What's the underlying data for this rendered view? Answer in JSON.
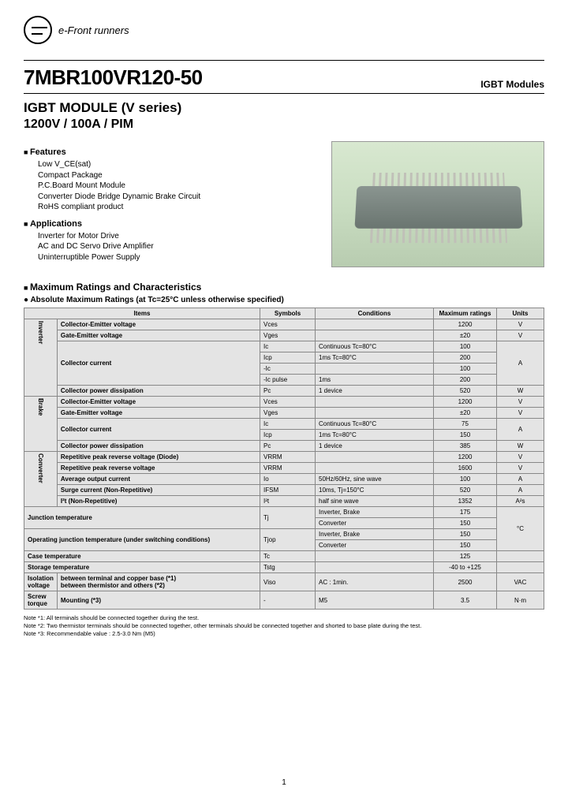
{
  "brand": "e-Front runners",
  "part_number": "7MBR100VR120-50",
  "category": "IGBT Modules",
  "subtitle": "IGBT MODULE (V series)",
  "spec_line": "1200V / 100A / PIM",
  "features": {
    "head": "Features",
    "items": [
      "Low V_CE(sat)",
      "Compact Package",
      "P.C.Board Mount Module",
      "Converter Diode Bridge Dynamic Brake Circuit",
      "RoHS compliant product"
    ]
  },
  "applications": {
    "head": "Applications",
    "items": [
      "Inverter for Motor Drive",
      "AC and DC Servo Drive Amplifier",
      "Uninterruptible Power Supply"
    ]
  },
  "ratings_title": "Maximum Ratings and Characteristics",
  "abs_title": "Absolute Maximum Ratings (at Tc=25°C unless otherwise specified)",
  "table": {
    "headers": [
      "Items",
      "Symbols",
      "Conditions",
      "Maximum ratings",
      "Units"
    ],
    "groups": [
      {
        "name": "Inverter",
        "rows": [
          {
            "item": "Collector-Emitter voltage",
            "sym": "Vces",
            "cond": "",
            "max": "1200",
            "unit": "V",
            "bold": true
          },
          {
            "item": "Gate-Emitter voltage",
            "sym": "Vges",
            "cond": "",
            "max": "±20",
            "unit": "V",
            "bold": true
          },
          {
            "item": "Collector current",
            "sym": "Ic",
            "cond": "Continuous      Tc=80°C",
            "max": "100",
            "unit": "A",
            "bold": true,
            "span_item": 4,
            "span_unit": 4
          },
          {
            "sym": "Icp",
            "cond": "1ms              Tc=80°C",
            "max": "200"
          },
          {
            "sym": "-Ic",
            "cond": "",
            "max": "100"
          },
          {
            "sym": "-Ic pulse",
            "cond": "1ms",
            "max": "200"
          },
          {
            "item": "Collector power dissipation",
            "sym": "Pc",
            "cond": "1 device",
            "max": "520",
            "unit": "W",
            "bold": true
          }
        ]
      },
      {
        "name": "Brake",
        "rows": [
          {
            "item": "Collector-Emitter voltage",
            "sym": "Vces",
            "cond": "",
            "max": "1200",
            "unit": "V",
            "bold": true
          },
          {
            "item": "Gate-Emitter voltage",
            "sym": "Vges",
            "cond": "",
            "max": "±20",
            "unit": "V",
            "bold": true
          },
          {
            "item": "Collector current",
            "sym": "Ic",
            "cond": "Continuous      Tc=80°C",
            "max": "75",
            "unit": "A",
            "bold": true,
            "span_item": 2,
            "span_unit": 2
          },
          {
            "sym": "Icp",
            "cond": "1ms              Tc=80°C",
            "max": "150"
          },
          {
            "item": "Collector power dissipation",
            "sym": "Pc",
            "cond": "1 device",
            "max": "385",
            "unit": "W",
            "bold": true
          }
        ]
      },
      {
        "name": "Converter",
        "rows": [
          {
            "item": "Repetitive peak reverse voltage (Diode)",
            "sym": "VRRM",
            "cond": "",
            "max": "1200",
            "unit": "V",
            "bold": true
          },
          {
            "item": "Repetitive peak reverse voltage",
            "sym": "VRRM",
            "cond": "",
            "max": "1600",
            "unit": "V",
            "bold": true
          },
          {
            "item": "Average output current",
            "sym": "Io",
            "cond": "50Hz/60Hz, sine wave",
            "max": "100",
            "unit": "A",
            "bold": true
          },
          {
            "item": "Surge current (Non-Repetitive)",
            "sym": "IFSM",
            "cond": "10ms, Tj=150°C",
            "max": "520",
            "unit": "A",
            "bold": true
          },
          {
            "item": "I²t (Non-Repetitive)",
            "sym": "I²t",
            "cond": "half sine wave",
            "max": "1352",
            "unit": "A²s",
            "bold": true
          }
        ]
      }
    ],
    "extra": [
      {
        "item": "Junction temperature",
        "sym": "Tj",
        "cond": "Inverter, Brake",
        "max": "175",
        "unit": "°C",
        "bold": true,
        "span_item": 2,
        "span_sym": 2,
        "span_unit": 4
      },
      {
        "cond": "Converter",
        "max": "150"
      },
      {
        "item": "Operating junction temperature (under switching conditions)",
        "sym": "Tjop",
        "cond": "Inverter, Brake",
        "max": "150",
        "bold": true,
        "span_item": 2,
        "span_sym": 2
      },
      {
        "cond": "Converter",
        "max": "150"
      },
      {
        "item": "Case temperature",
        "sym": "Tc",
        "cond": "",
        "max": "125",
        "unit": "",
        "bold": true
      },
      {
        "item": "Storage temperature",
        "sym": "Tstg",
        "cond": "",
        "max": "-40 to +125",
        "unit": "",
        "bold": true
      },
      {
        "item": "Isolation voltage",
        "item2": "between terminal and copper base (*1)\nbetween thermistor and others (*2)",
        "sym": "Viso",
        "cond": "AC : 1min.",
        "max": "2500",
        "unit": "VAC",
        "bold": true
      },
      {
        "item": "Screw torque",
        "item2": "Mounting (*3)",
        "sym": "-",
        "cond": "M5",
        "max": "3.5",
        "unit": "N·m",
        "bold": true
      }
    ]
  },
  "notes": [
    "Note *1: All terminals should be connected together during the test.",
    "Note *2: Two thermistor terminals should be connected together, other terminals should be connected together and shorted to base plate during the test.",
    "Note *3: Recommendable value : 2.5-3.0 Nm (M5)"
  ],
  "page": "1"
}
